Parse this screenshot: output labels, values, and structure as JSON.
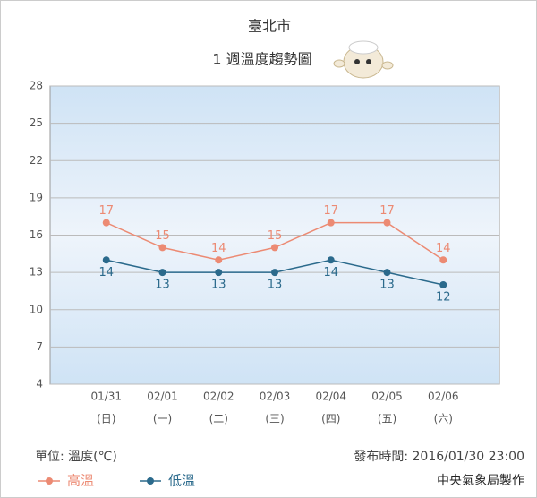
{
  "chart_data": {
    "type": "line",
    "title": "臺北市",
    "subtitle": "1 週溫度趨勢圖",
    "categories": [
      "01/31",
      "02/01",
      "02/02",
      "02/03",
      "02/04",
      "02/05",
      "02/06"
    ],
    "weekdays": [
      "(日)",
      "(一)",
      "(二)",
      "(三)",
      "(四)",
      "(五)",
      "(六)"
    ],
    "series": [
      {
        "name": "高溫",
        "color": "#ec8a73",
        "values": [
          17,
          15,
          14,
          15,
          17,
          17,
          14
        ]
      },
      {
        "name": "低溫",
        "color": "#2b6a8c",
        "values": [
          14,
          13,
          13,
          13,
          14,
          13,
          12
        ]
      }
    ],
    "ylim": [
      4,
      28
    ],
    "yticks": [
      4,
      7,
      10,
      13,
      16,
      19,
      22,
      25,
      28
    ],
    "grid": true,
    "unit": "單位: 溫度(℃)",
    "published": "發布時間: 2016/01/30 23:00",
    "source": "中央氣象局製作"
  }
}
